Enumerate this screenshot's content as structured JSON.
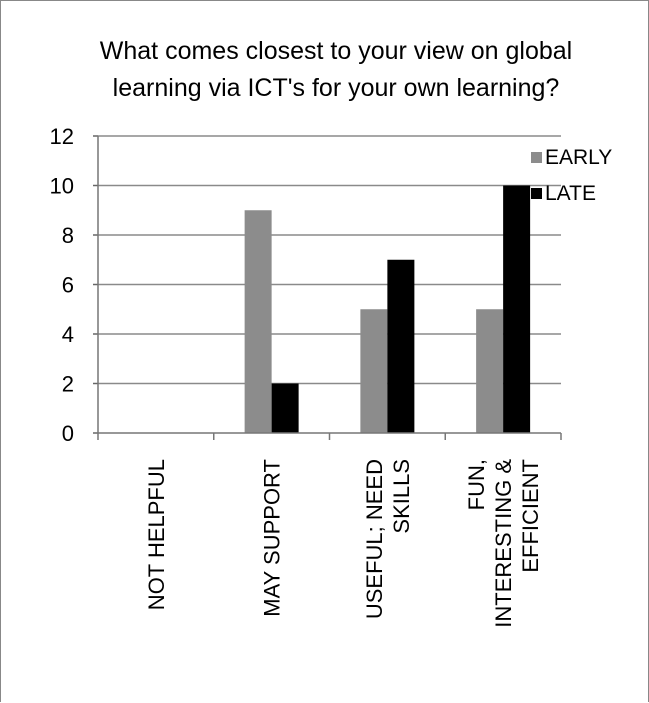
{
  "chart_data": {
    "type": "bar",
    "title_lines": [
      "What comes closest to your view on global",
      "learning via ICT's for your own learning?"
    ],
    "categories": [
      [
        "NOT HELPFUL"
      ],
      [
        "MAY SUPPORT"
      ],
      [
        "USEFUL; NEED",
        "SKILLS"
      ],
      [
        "FUN,",
        "INTERESTING &",
        "EFFICIENT"
      ]
    ],
    "series": [
      {
        "name": "EARLY",
        "values": [
          0,
          9,
          5,
          5
        ],
        "color": "#8c8c8c"
      },
      {
        "name": "LATE",
        "values": [
          0,
          2,
          7,
          10
        ],
        "color": "#000000"
      }
    ],
    "ylim": [
      0,
      12
    ],
    "yticks": [
      0,
      2,
      4,
      6,
      8,
      10,
      12
    ],
    "grid": true,
    "legend_position": "top-right"
  }
}
